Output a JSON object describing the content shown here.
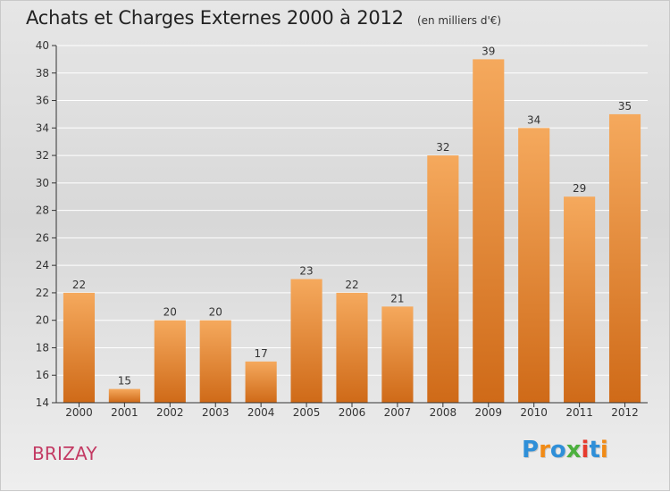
{
  "header": {
    "title": "Achats et Charges Externes 2000 à 2012",
    "unit": "(en milliers d'€)"
  },
  "footer": {
    "commune": "BRIZAY",
    "brand_letters": [
      "P",
      "r",
      "o",
      "x",
      "i",
      "t",
      "i"
    ],
    "brand_colors": [
      "#2f8fd8",
      "#f18b16",
      "#2f8fd8",
      "#4cb03e",
      "#e63b2e",
      "#2f8fd8",
      "#f18b16"
    ]
  },
  "chart_data": {
    "type": "bar",
    "categories": [
      "2000",
      "2001",
      "2002",
      "2003",
      "2004",
      "2005",
      "2006",
      "2007",
      "2008",
      "2009",
      "2010",
      "2011",
      "2012"
    ],
    "values": [
      22,
      15,
      20,
      20,
      17,
      23,
      22,
      21,
      32,
      39,
      34,
      29,
      35
    ],
    "ylim": [
      14,
      40
    ],
    "yticks": [
      14,
      16,
      18,
      20,
      22,
      24,
      26,
      28,
      30,
      32,
      34,
      36,
      38,
      40
    ],
    "grid": true,
    "bar_color_top": "#f5a95d",
    "bar_color_bottom": "#cf6a18",
    "grid_color": "#ffffff",
    "axis_color": "#333333"
  }
}
